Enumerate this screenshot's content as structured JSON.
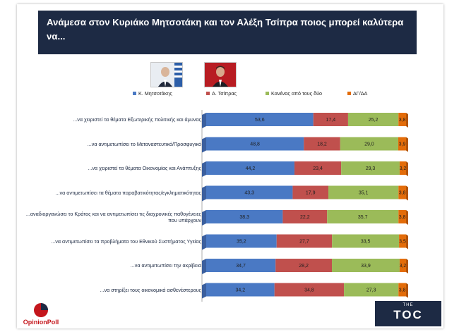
{
  "title": "Ανάμεσα στον Κυριάκο Μητσοτάκη και τον Αλέξη Τσίπρα ποιος μπορεί καλύτερα να...",
  "logos": {
    "opinion_poll": "OpinionPoll",
    "toc_small": "THE",
    "toc_big": "TOC"
  },
  "colors": {
    "mitsotakis": "#4a79c4",
    "tsipras": "#c0504d",
    "none": "#9bbb59",
    "dk": "#e36c09",
    "title_bg": "#1d2a44"
  },
  "chart_data": {
    "type": "bar",
    "orientation": "horizontal",
    "stacked": true,
    "percent_stacked": true,
    "legend_position": "top",
    "categories": [
      "...να χειριστεί τα θέματα Εξωτερικής πολιτικής και άμυνας",
      "...να αντιμετωπίσει το Μεταναστευτικό/Προσφυγικό",
      "...να χειριστεί τα θέματα Οικονομίας και Ανάπτυξης",
      "...να αντιμετωπίσει τα θέματα παραβατικότητας/εγκληματικότητας",
      "...αναδιοργανώσει το Κράτος και να αντιμετωπίσει τις διαχρονικές παθογένειες που υπάρχουν",
      "...να αντιμετωπίσει τα προβλήματα του Εθνικού Συστήματος Υγείας",
      "...να αντιμετωπίσει την ακρίβεια",
      "...να στηρίξει τους οικονομικά ασθενέστερους"
    ],
    "series": [
      {
        "name": "Κ. Μητσοτάκης",
        "values": [
          "53,6",
          "48,8",
          "44,2",
          "43,3",
          "38,3",
          "35,2",
          "34,7",
          "34,2"
        ]
      },
      {
        "name": "Α. Τσίπρας",
        "values": [
          "17,4",
          "18,2",
          "23,4",
          "17,9",
          "22,2",
          "27,7",
          "28,2",
          "34,8"
        ]
      },
      {
        "name": "Κανένας από τους δύο",
        "values": [
          "25,2",
          "29,0",
          "29,3",
          "35,1",
          "35,7",
          "33,5",
          "33,9",
          "27,3"
        ]
      },
      {
        "name": "ΔΓ/ΔΑ",
        "values": [
          "3,8",
          "3,9",
          "3,2",
          "3,8",
          "3,8",
          "3,5",
          "3,2",
          "3,8"
        ]
      }
    ]
  }
}
